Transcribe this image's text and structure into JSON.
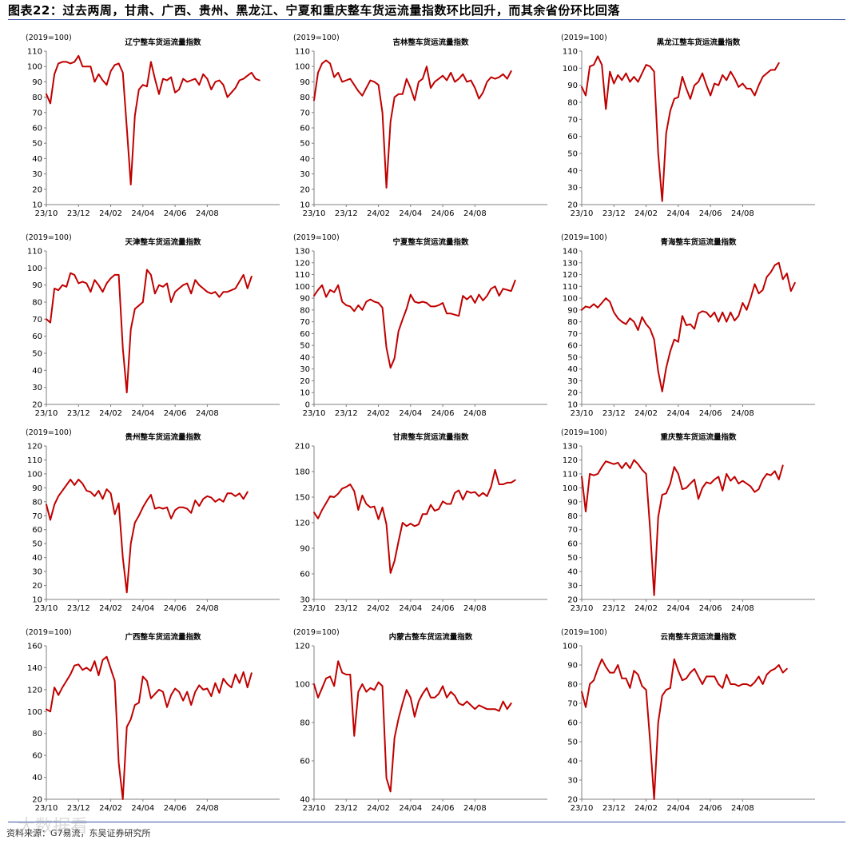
{
  "figure": {
    "title": "图表22：过去两周，甘肃、广西、贵州、黑龙江、宁夏和重庆整车货运流量指数环比回升，而其余省份环比回落",
    "source": "资料来源：G7易流，东吴证券研究所",
    "watermark": "大数据看"
  },
  "colors": {
    "line": "#c00000",
    "axis": "#808080",
    "rule": "#3a56a6"
  },
  "chart_data": [
    {
      "type": "line",
      "title": "辽宁整车货运流量指数",
      "ylabel": "(2019=100)",
      "ylim": [
        10,
        110
      ],
      "yticks": [
        10,
        20,
        30,
        40,
        50,
        60,
        70,
        80,
        90,
        100,
        110
      ],
      "xlim": [
        0,
        58
      ],
      "xticks": [
        0,
        8,
        16,
        24,
        32,
        40
      ],
      "xticklabels": [
        "23/10",
        "23/12",
        "24/02",
        "24/04",
        "24/06",
        "24/08"
      ],
      "series": [
        {
          "values": [
            82,
            76,
            95,
            102,
            103,
            103,
            102,
            103,
            107,
            100,
            100,
            100,
            90,
            95,
            91,
            88,
            97,
            101,
            102,
            96,
            60,
            23,
            68,
            85,
            88,
            87,
            103,
            92,
            82,
            92,
            91,
            93,
            83,
            85,
            92,
            90,
            91,
            92,
            88,
            95,
            92,
            85,
            90,
            91,
            88,
            80,
            83,
            86,
            91,
            92,
            94,
            96,
            92,
            91
          ]
        }
      ]
    },
    {
      "type": "line",
      "title": "吉林整车货运流量指数",
      "ylabel": "(2019=100)",
      "ylim": [
        10,
        110
      ],
      "yticks": [
        10,
        20,
        30,
        40,
        50,
        60,
        70,
        80,
        90,
        100,
        110
      ],
      "xlim": [
        0,
        58
      ],
      "xticks": [
        0,
        8,
        16,
        24,
        32,
        40
      ],
      "xticklabels": [
        "23/10",
        "23/12",
        "24/02",
        "24/04",
        "24/06",
        "24/08"
      ],
      "series": [
        {
          "values": [
            78,
            96,
            102,
            104,
            102,
            93,
            96,
            90,
            91,
            92,
            88,
            84,
            81,
            86,
            91,
            90,
            88,
            70,
            21,
            64,
            80,
            82,
            82,
            92,
            86,
            78,
            90,
            92,
            100,
            86,
            90,
            92,
            94,
            91,
            96,
            90,
            92,
            95,
            90,
            91,
            86,
            79,
            83,
            90,
            93,
            92,
            93,
            95,
            92,
            97
          ]
        }
      ]
    },
    {
      "type": "line",
      "title": "黑龙江整车货运流量指数",
      "ylabel": "(2019=100)",
      "ylim": [
        20,
        110
      ],
      "yticks": [
        20,
        30,
        40,
        50,
        60,
        70,
        80,
        90,
        100,
        110
      ],
      "xlim": [
        0,
        58
      ],
      "xticks": [
        0,
        8,
        16,
        24,
        32,
        40
      ],
      "xticklabels": [
        "23/10",
        "23/12",
        "24/02",
        "24/04",
        "24/06",
        "24/08"
      ],
      "series": [
        {
          "values": [
            89,
            84,
            101,
            102,
            107,
            102,
            76,
            98,
            91,
            96,
            93,
            97,
            92,
            95,
            92,
            97,
            102,
            101,
            98,
            50,
            22,
            62,
            75,
            82,
            83,
            95,
            88,
            82,
            90,
            92,
            97,
            90,
            84,
            91,
            90,
            96,
            93,
            98,
            94,
            89,
            91,
            88,
            88,
            84,
            90,
            95,
            97,
            99,
            99,
            103
          ]
        }
      ]
    },
    {
      "type": "line",
      "title": "天津整车货运流量指数",
      "ylabel": "(2019=100)",
      "ylim": [
        20,
        110
      ],
      "yticks": [
        20,
        30,
        40,
        50,
        60,
        70,
        80,
        90,
        100,
        110
      ],
      "xlim": [
        0,
        58
      ],
      "xticks": [
        0,
        8,
        16,
        24,
        32,
        40
      ],
      "xticklabels": [
        "23/10",
        "23/12",
        "24/02",
        "24/04",
        "24/06",
        "24/08"
      ],
      "series": [
        {
          "values": [
            70,
            68,
            88,
            87,
            90,
            89,
            97,
            96,
            91,
            92,
            91,
            86,
            93,
            90,
            86,
            91,
            94,
            96,
            96,
            53,
            27,
            64,
            76,
            78,
            80,
            99,
            96,
            85,
            90,
            89,
            91,
            80,
            86,
            88,
            90,
            91,
            85,
            93,
            90,
            88,
            86,
            85,
            86,
            83,
            86,
            86,
            87,
            88,
            92,
            96,
            88,
            95
          ]
        }
      ]
    },
    {
      "type": "line",
      "title": "宁夏整车货运流量指数",
      "ylabel": "(2019=100)",
      "ylim": [
        0,
        130
      ],
      "yticks": [
        0,
        10,
        20,
        30,
        40,
        50,
        60,
        70,
        80,
        90,
        100,
        110,
        120,
        130
      ],
      "xlim": [
        0,
        58
      ],
      "xticks": [
        0,
        8,
        16,
        24,
        32,
        40
      ],
      "xticklabels": [
        "23/10",
        "23/12",
        "24/02",
        "24/04",
        "24/06",
        "24/08"
      ],
      "series": [
        {
          "values": [
            92,
            97,
            101,
            91,
            97,
            95,
            101,
            87,
            84,
            83,
            79,
            84,
            80,
            87,
            89,
            87,
            86,
            82,
            48,
            31,
            39,
            62,
            72,
            81,
            93,
            87,
            86,
            87,
            86,
            83,
            83,
            84,
            86,
            77,
            77,
            76,
            75,
            92,
            89,
            92,
            86,
            93,
            88,
            92,
            98,
            100,
            92,
            98,
            97,
            96,
            105
          ]
        }
      ]
    },
    {
      "type": "line",
      "title": "青海整车货运流量指数",
      "ylabel": "(2019=100)",
      "ylim": [
        10,
        140
      ],
      "yticks": [
        10,
        20,
        30,
        40,
        50,
        60,
        70,
        80,
        90,
        100,
        110,
        120,
        130,
        140
      ],
      "xlim": [
        0,
        58
      ],
      "xticks": [
        0,
        8,
        16,
        24,
        32,
        40
      ],
      "xticklabels": [
        "23/10",
        "23/12",
        "24/02",
        "24/04",
        "24/06",
        "24/08"
      ],
      "series": [
        {
          "values": [
            90,
            93,
            92,
            95,
            92,
            96,
            100,
            97,
            88,
            83,
            80,
            78,
            83,
            80,
            73,
            84,
            78,
            74,
            65,
            38,
            21,
            41,
            55,
            65,
            63,
            85,
            77,
            78,
            74,
            87,
            89,
            88,
            84,
            88,
            80,
            88,
            80,
            88,
            81,
            85,
            96,
            90,
            100,
            112,
            104,
            107,
            118,
            122,
            128,
            130,
            116,
            121,
            106,
            113
          ]
        }
      ]
    },
    {
      "type": "line",
      "title": "贵州整车货运流量指数",
      "ylabel": "(2019=100)",
      "ylim": [
        10,
        120
      ],
      "yticks": [
        10,
        20,
        30,
        40,
        50,
        60,
        70,
        80,
        90,
        100,
        110,
        120
      ],
      "xlim": [
        0,
        58
      ],
      "xticks": [
        0,
        8,
        16,
        24,
        32,
        40
      ],
      "xticklabels": [
        "23/10",
        "23/12",
        "24/02",
        "24/04",
        "24/06",
        "24/08"
      ],
      "series": [
        {
          "values": [
            78,
            67,
            78,
            84,
            88,
            92,
            96,
            92,
            96,
            93,
            88,
            87,
            84,
            88,
            82,
            89,
            86,
            71,
            79,
            40,
            15,
            50,
            65,
            70,
            76,
            81,
            85,
            75,
            76,
            75,
            76,
            68,
            74,
            76,
            76,
            75,
            72,
            81,
            77,
            82,
            84,
            83,
            80,
            82,
            80,
            86,
            86,
            84,
            86,
            82,
            87
          ]
        }
      ]
    },
    {
      "type": "line",
      "title": "甘肃整车货运流量指数",
      "ylabel": "",
      "ylim": [
        30,
        210
      ],
      "yticks": [
        30,
        60,
        90,
        120,
        150,
        180,
        210
      ],
      "xlim": [
        0,
        58
      ],
      "xticks": [
        0,
        8,
        16,
        24,
        32,
        40
      ],
      "xticklabels": [
        "23/10",
        "23/12",
        "24/02",
        "24/04",
        "24/06",
        "24/08"
      ],
      "series": [
        {
          "values": [
            132,
            125,
            135,
            143,
            151,
            150,
            154,
            160,
            162,
            165,
            157,
            135,
            152,
            142,
            138,
            139,
            124,
            138,
            118,
            61,
            75,
            98,
            120,
            116,
            119,
            116,
            118,
            130,
            130,
            141,
            134,
            136,
            145,
            142,
            142,
            155,
            158,
            147,
            157,
            155,
            156,
            151,
            155,
            151,
            162,
            182,
            165,
            165,
            167,
            167,
            170
          ]
        }
      ]
    },
    {
      "type": "line",
      "title": "重庆整车货运流量指数",
      "ylabel": "(2019=100)",
      "ylim": [
        20,
        130
      ],
      "yticks": [
        20,
        30,
        40,
        50,
        60,
        70,
        80,
        90,
        100,
        110,
        120,
        130
      ],
      "xlim": [
        0,
        58
      ],
      "xticks": [
        0,
        8,
        16,
        24,
        32,
        40
      ],
      "xticklabels": [
        "23/10",
        "23/12",
        "24/02",
        "24/04",
        "24/06",
        "24/08"
      ],
      "series": [
        {
          "values": [
            108,
            83,
            110,
            109,
            110,
            115,
            119,
            118,
            117,
            118,
            114,
            118,
            114,
            120,
            117,
            113,
            110,
            70,
            23,
            79,
            95,
            96,
            103,
            115,
            110,
            99,
            100,
            103,
            106,
            92,
            100,
            104,
            103,
            106,
            108,
            98,
            110,
            105,
            108,
            103,
            105,
            103,
            101,
            97,
            99,
            106,
            110,
            109,
            112,
            106,
            116
          ]
        }
      ]
    },
    {
      "type": "line",
      "title": "广西整车货运流量指数",
      "ylabel": "(2019=100)",
      "ylim": [
        20,
        160
      ],
      "yticks": [
        20,
        40,
        60,
        80,
        100,
        120,
        140,
        160
      ],
      "xlim": [
        0,
        58
      ],
      "xticks": [
        0,
        8,
        16,
        24,
        32,
        40
      ],
      "xticklabels": [
        "23/10",
        "23/12",
        "24/02",
        "24/04",
        "24/06",
        "24/08"
      ],
      "series": [
        {
          "values": [
            102,
            100,
            122,
            115,
            122,
            128,
            134,
            142,
            143,
            138,
            140,
            137,
            146,
            133,
            147,
            150,
            139,
            128,
            53,
            20,
            86,
            93,
            106,
            108,
            132,
            128,
            112,
            116,
            120,
            118,
            104,
            115,
            121,
            118,
            110,
            118,
            106,
            118,
            124,
            120,
            121,
            114,
            126,
            117,
            130,
            125,
            122,
            134,
            126,
            136,
            122,
            135
          ]
        }
      ]
    },
    {
      "type": "line",
      "title": "内蒙古整车货运流量指数",
      "ylabel": "(2019=100)",
      "ylim": [
        40,
        120
      ],
      "yticks": [
        40,
        60,
        80,
        100,
        120
      ],
      "xlim": [
        0,
        58
      ],
      "xticks": [
        0,
        8,
        16,
        24,
        32,
        40
      ],
      "xticklabels": [
        "23/10",
        "23/12",
        "24/02",
        "24/04",
        "24/06",
        "24/08"
      ],
      "series": [
        {
          "values": [
            100,
            93,
            98,
            103,
            104,
            99,
            112,
            106,
            105,
            105,
            73,
            96,
            100,
            96,
            98,
            97,
            101,
            99,
            51,
            44,
            72,
            82,
            90,
            97,
            93,
            83,
            91,
            95,
            98,
            93,
            93,
            95,
            99,
            93,
            96,
            94,
            90,
            89,
            91,
            89,
            87,
            89,
            88,
            87,
            87,
            87,
            86,
            91,
            87,
            90
          ]
        }
      ]
    },
    {
      "type": "line",
      "title": "云南整车货运流量指数",
      "ylabel": "(2019=100)",
      "ylim": [
        20,
        100
      ],
      "yticks": [
        20,
        30,
        40,
        50,
        60,
        70,
        80,
        90,
        100
      ],
      "xlim": [
        0,
        58
      ],
      "xticks": [
        0,
        8,
        16,
        24,
        32,
        40
      ],
      "xticklabels": [
        "23/10",
        "23/12",
        "24/02",
        "24/04",
        "24/06",
        "24/08"
      ],
      "series": [
        {
          "values": [
            76,
            68,
            80,
            82,
            88,
            93,
            89,
            86,
            86,
            90,
            83,
            83,
            78,
            87,
            85,
            79,
            77,
            50,
            20,
            60,
            74,
            77,
            78,
            93,
            87,
            82,
            83,
            86,
            88,
            84,
            80,
            84,
            84,
            84,
            80,
            78,
            85,
            80,
            80,
            79,
            80,
            80,
            79,
            81,
            84,
            80,
            85,
            87,
            88,
            90,
            86,
            88
          ]
        }
      ]
    }
  ]
}
